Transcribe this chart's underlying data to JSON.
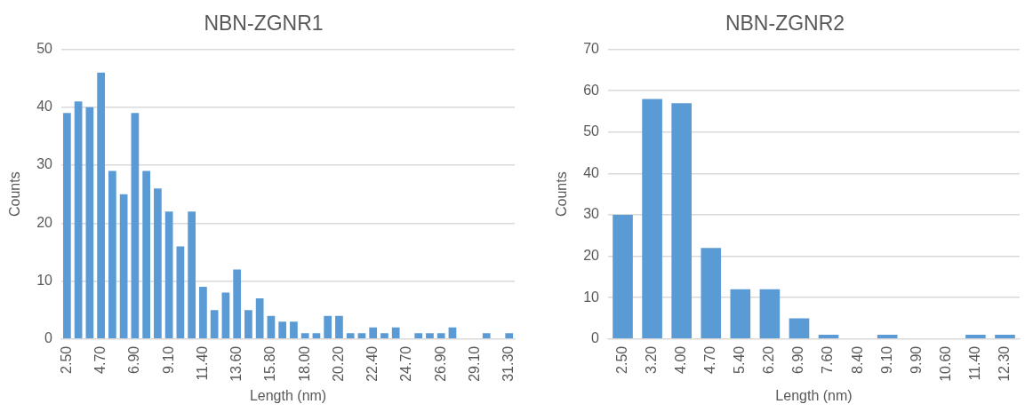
{
  "chart_data": [
    {
      "type": "bar",
      "title": "NBN-ZGNR1",
      "xlabel": "Length (nm)",
      "ylabel": "Counts",
      "categories": [
        "2.50",
        null,
        null,
        "4.70",
        null,
        null,
        "6.90",
        null,
        null,
        "9.10",
        null,
        null,
        "11.40",
        null,
        null,
        "13.60",
        null,
        null,
        "15.80",
        null,
        null,
        "18.00",
        null,
        null,
        "20.20",
        null,
        null,
        "22.40",
        null,
        null,
        "24.70",
        null,
        null,
        "26.90",
        null,
        null,
        "29.10",
        null,
        null,
        "31.30"
      ],
      "values": [
        39,
        41,
        40,
        46,
        29,
        25,
        39,
        29,
        26,
        22,
        16,
        22,
        9,
        5,
        8,
        12,
        5,
        7,
        4,
        3,
        3,
        1,
        1,
        4,
        4,
        1,
        1,
        2,
        1,
        2,
        0,
        1,
        1,
        1,
        2,
        0,
        0,
        1,
        0,
        1
      ],
      "color": "#5b9bd5",
      "ylim": [
        0,
        50
      ],
      "yticks": [
        0,
        10,
        20,
        30,
        40,
        50
      ],
      "grid": "y"
    },
    {
      "type": "bar",
      "title": "NBN-ZGNR2",
      "xlabel": "Length (nm)",
      "ylabel": "Counts",
      "categories": [
        "2.50",
        "3.20",
        "4.00",
        "4.70",
        "5.40",
        "6.20",
        "6.90",
        "7.60",
        "8.40",
        "9.10",
        "9.90",
        "10.60",
        "11.40",
        "12.30"
      ],
      "values": [
        30,
        58,
        57,
        22,
        12,
        12,
        5,
        1,
        0,
        1,
        0,
        0,
        1,
        1
      ],
      "color": "#5b9bd5",
      "ylim": [
        0,
        70
      ],
      "yticks": [
        0,
        10,
        20,
        30,
        40,
        50,
        60,
        70
      ],
      "grid": "y"
    }
  ]
}
